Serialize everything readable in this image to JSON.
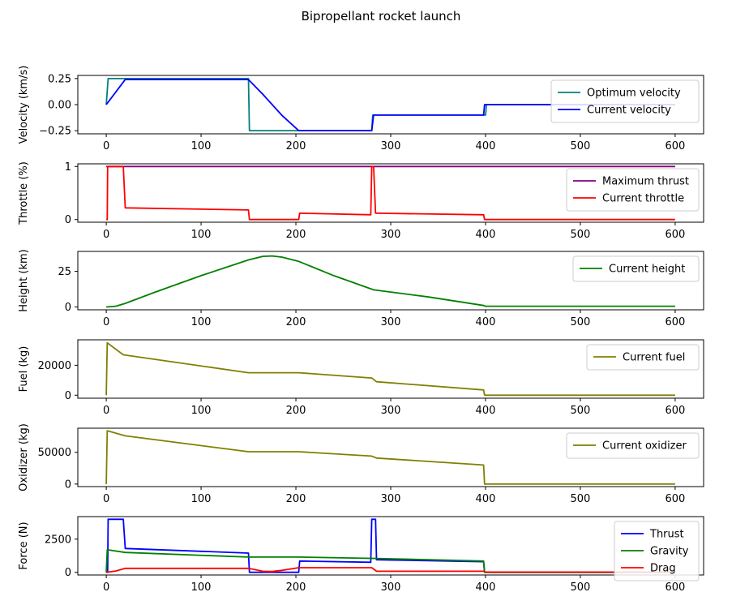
{
  "figure": {
    "title": "Bipropellant rocket launch"
  },
  "chart_data": [
    {
      "type": "line",
      "title": "",
      "xlabel": "",
      "ylabel": "Velocity (km/s)",
      "xlim": [
        -30,
        630
      ],
      "ylim": [
        -0.28,
        0.28
      ],
      "xticks": [
        0,
        100,
        200,
        300,
        400,
        500,
        600
      ],
      "yticks": [
        -0.25,
        0.0,
        0.25
      ],
      "ytick_labels": [
        "−0.25",
        "0.00",
        "0.25"
      ],
      "legend_position": "top-right",
      "series": [
        {
          "name": "Optimum  velocity",
          "color": "#008080",
          "x": [
            0,
            2,
            150,
            151,
            280,
            281,
            400,
            401,
            600
          ],
          "y": [
            0,
            0.25,
            0.25,
            -0.25,
            -0.25,
            -0.1,
            -0.1,
            0,
            0
          ]
        },
        {
          "name": "Current velocity",
          "color": "#0000ff",
          "x": [
            0,
            20,
            150,
            165,
            185,
            203,
            280,
            282,
            398,
            399,
            600
          ],
          "y": [
            0,
            0.24,
            0.24,
            0.1,
            -0.1,
            -0.25,
            -0.25,
            -0.1,
            -0.1,
            0,
            0
          ]
        }
      ]
    },
    {
      "type": "line",
      "title": "",
      "xlabel": "",
      "ylabel": "Throttle (%)",
      "xlim": [
        -30,
        630
      ],
      "ylim": [
        -0.05,
        1.05
      ],
      "xticks": [
        0,
        100,
        200,
        300,
        400,
        500,
        600
      ],
      "yticks": [
        0,
        1
      ],
      "ytick_labels": [
        "0",
        "1"
      ],
      "legend_position": "top-right",
      "series": [
        {
          "name": "Maximum thrust",
          "color": "#800080",
          "x": [
            0,
            600
          ],
          "y": [
            1,
            1
          ]
        },
        {
          "name": "Current throttle",
          "color": "#ff0000",
          "x": [
            0,
            1,
            1.5,
            18,
            20,
            150,
            151,
            203,
            204,
            279,
            280,
            282,
            284,
            285,
            398,
            399,
            600
          ],
          "y": [
            0,
            0,
            1,
            1,
            0.22,
            0.18,
            0,
            0,
            0.12,
            0.09,
            1,
            1,
            0.12,
            0.12,
            0.09,
            0,
            0
          ]
        }
      ]
    },
    {
      "type": "line",
      "title": "",
      "xlabel": "",
      "ylabel": "Height (km)",
      "xlim": [
        -30,
        630
      ],
      "ylim": [
        -2,
        39
      ],
      "xticks": [
        0,
        100,
        200,
        300,
        400,
        500,
        600
      ],
      "yticks": [
        0,
        25
      ],
      "ytick_labels": [
        "0",
        "25"
      ],
      "legend_position": "top-right",
      "series": [
        {
          "name": "Current height",
          "color": "#008000",
          "x": [
            0,
            10,
            20,
            50,
            100,
            150,
            165,
            175,
            185,
            203,
            240,
            282,
            340,
            398,
            400,
            600
          ],
          "y": [
            0,
            0.5,
            2.5,
            10,
            22,
            33,
            35.5,
            35.8,
            35,
            32,
            22,
            12,
            7,
            1,
            0.5,
            0.5
          ]
        }
      ]
    },
    {
      "type": "line",
      "title": "",
      "xlabel": "",
      "ylabel": "Fuel (kg)",
      "xlim": [
        -30,
        630
      ],
      "ylim": [
        -2000,
        37000
      ],
      "xticks": [
        0,
        100,
        200,
        300,
        400,
        500,
        600
      ],
      "yticks": [
        0,
        20000
      ],
      "ytick_labels": [
        "0",
        "20000"
      ],
      "legend_position": "top-right",
      "series": [
        {
          "name": "Current fuel",
          "color": "#808000",
          "x": [
            0,
            1,
            18,
            150,
            203,
            280,
            285,
            398,
            399,
            600
          ],
          "y": [
            0,
            35000,
            27000,
            15000,
            15000,
            11500,
            9000,
            3500,
            0,
            0
          ]
        }
      ]
    },
    {
      "type": "line",
      "title": "",
      "xlabel": "",
      "ylabel": "Oxidizer (kg)",
      "xlim": [
        -30,
        630
      ],
      "ylim": [
        -4000,
        88000
      ],
      "xticks": [
        0,
        100,
        200,
        300,
        400,
        500,
        600
      ],
      "yticks": [
        0,
        50000
      ],
      "ytick_labels": [
        "0",
        "50000"
      ],
      "legend_position": "top-right",
      "series": [
        {
          "name": "Current oxidizer",
          "color": "#808000",
          "x": [
            0,
            1,
            20,
            150,
            203,
            280,
            285,
            398,
            399,
            600
          ],
          "y": [
            0,
            84000,
            76000,
            51000,
            51000,
            44000,
            41000,
            30000,
            0,
            0
          ]
        }
      ]
    },
    {
      "type": "line",
      "title": "",
      "xlabel": "",
      "ylabel": "Force (N)",
      "xlim": [
        -30,
        630
      ],
      "ylim": [
        -200,
        4200
      ],
      "xticks": [
        0,
        100,
        200,
        300,
        400,
        500,
        600
      ],
      "yticks": [
        0,
        2500
      ],
      "ytick_labels": [
        "0",
        "2500"
      ],
      "legend_position": "top-right",
      "series": [
        {
          "name": "Thrust",
          "color": "#0000ff",
          "x": [
            0,
            1.5,
            2,
            18,
            20,
            150,
            151,
            203,
            204,
            279,
            280,
            284,
            285,
            398,
            399,
            600
          ],
          "y": [
            0,
            0,
            4000,
            4000,
            1800,
            1450,
            0,
            0,
            850,
            760,
            4000,
            4000,
            950,
            800,
            0,
            0
          ]
        },
        {
          "name": "Gravity",
          "color": "#008000",
          "x": [
            0,
            1,
            20,
            150,
            203,
            280,
            398,
            399,
            600
          ],
          "y": [
            0,
            1700,
            1500,
            1150,
            1150,
            1050,
            850,
            0,
            0
          ]
        },
        {
          "name": "Drag",
          "color": "#ff0000",
          "x": [
            0,
            10,
            20,
            150,
            165,
            175,
            185,
            203,
            280,
            285,
            398,
            400,
            600
          ],
          "y": [
            0,
            100,
            300,
            300,
            80,
            60,
            150,
            350,
            350,
            80,
            80,
            20,
            20
          ]
        }
      ]
    }
  ]
}
